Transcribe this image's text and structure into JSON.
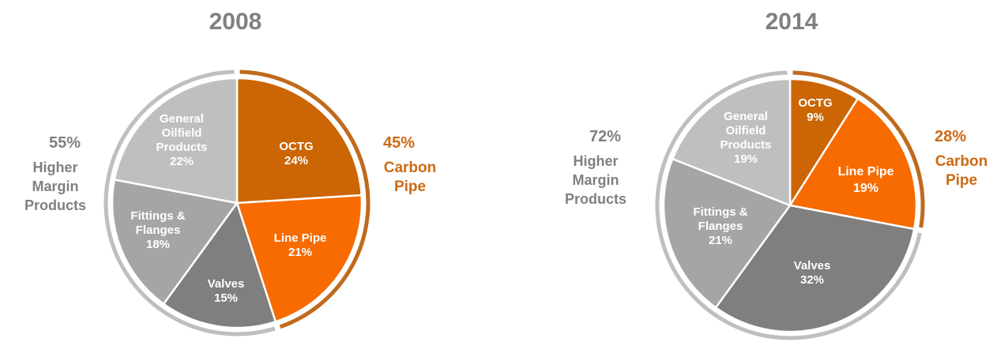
{
  "colors": {
    "octg": "#cc6504",
    "line_pipe": "#f76b00",
    "valves": "#7f7f7f",
    "fittings": "#a5a5a5",
    "general": "#bfbfbf",
    "carbon_ring": "#c06a1c",
    "higher_ring": "#bfbfbf",
    "gray_text": "#808080",
    "orange_text": "#cc6a14",
    "slice_text": "#ffffff"
  },
  "chart_data": [
    {
      "type": "pie",
      "title": "2008",
      "slices": [
        {
          "label_lines": [
            "OCTG",
            "24%"
          ],
          "value": 24,
          "color": "#cc6504"
        },
        {
          "label_lines": [
            "Line Pipe",
            "21%"
          ],
          "value": 21,
          "color": "#f76b00"
        },
        {
          "label_lines": [
            "Valves",
            "15%"
          ],
          "value": 15,
          "color": "#7f7f7f"
        },
        {
          "label_lines": [
            "Fittings &",
            "Flanges",
            "18%"
          ],
          "value": 18,
          "color": "#a5a5a5"
        },
        {
          "label_lines": [
            "General",
            "Oilfield",
            "Products",
            "22%"
          ],
          "value": 22,
          "color": "#bfbfbf"
        }
      ],
      "groups": {
        "carbon": {
          "percent": "45%",
          "label_lines": [
            "Carbon",
            "Pipe"
          ],
          "value": 45
        },
        "higher": {
          "percent": "55%",
          "label_lines": [
            "Higher",
            "Margin",
            "Products"
          ],
          "value": 55
        }
      }
    },
    {
      "type": "pie",
      "title": "2014",
      "slices": [
        {
          "label_lines": [
            "OCTG",
            "9%"
          ],
          "value": 9,
          "color": "#cc6504"
        },
        {
          "label_lines": [
            "Line Pipe",
            "19%"
          ],
          "value": 19,
          "color": "#f76b00"
        },
        {
          "label_lines": [
            "Valves",
            "32%"
          ],
          "value": 32,
          "color": "#7f7f7f"
        },
        {
          "label_lines": [
            "Fittings &",
            "Flanges",
            "21%"
          ],
          "value": 21,
          "color": "#a5a5a5"
        },
        {
          "label_lines": [
            "General",
            "Oilfield",
            "Products",
            "19%"
          ],
          "value": 19,
          "color": "#bfbfbf"
        }
      ],
      "groups": {
        "carbon": {
          "percent": "28%",
          "label_lines": [
            "Carbon",
            "Pipe"
          ],
          "value": 28
        },
        "higher": {
          "percent": "72%",
          "label_lines": [
            "Higher",
            "Margin",
            "Products"
          ],
          "value": 72
        }
      }
    }
  ]
}
